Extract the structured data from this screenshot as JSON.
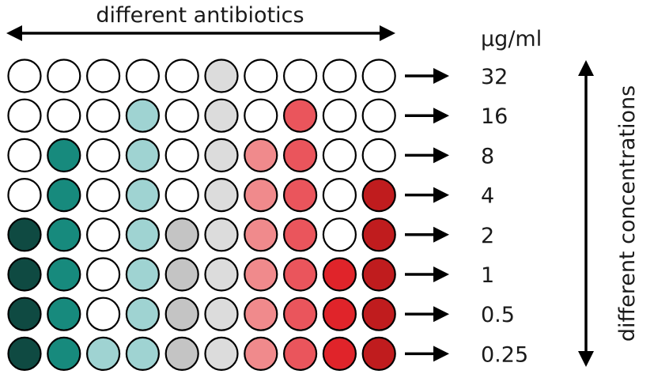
{
  "header": {
    "top_label": "different antibiotics",
    "unit_label": "μg/ml",
    "side_label": "different concentrations"
  },
  "concentrations": [
    "32",
    "16",
    "8",
    "4",
    "2",
    "1",
    "0.5",
    "0.25"
  ],
  "palette": {
    "empty": "#ffffff",
    "dark_teal": "#0f4a42",
    "teal": "#178a7d",
    "light_teal": "#9fd3d2",
    "gray": "#c4c4c4",
    "light_gray": "#dcdcdc",
    "pink": "#f08a8c",
    "salmon": "#ea555c",
    "red": "#e0242a",
    "dark_red": "#c01c1e"
  },
  "wells": [
    [
      "empty",
      "empty",
      "empty",
      "empty",
      "empty",
      "light_gray",
      "empty",
      "empty",
      "empty",
      "empty"
    ],
    [
      "empty",
      "empty",
      "empty",
      "light_teal",
      "empty",
      "light_gray",
      "empty",
      "salmon",
      "empty",
      "empty"
    ],
    [
      "empty",
      "teal",
      "empty",
      "light_teal",
      "empty",
      "light_gray",
      "pink",
      "salmon",
      "empty",
      "empty"
    ],
    [
      "empty",
      "teal",
      "empty",
      "light_teal",
      "empty",
      "light_gray",
      "pink",
      "salmon",
      "empty",
      "dark_red"
    ],
    [
      "dark_teal",
      "teal",
      "empty",
      "light_teal",
      "gray",
      "light_gray",
      "pink",
      "salmon",
      "empty",
      "dark_red"
    ],
    [
      "dark_teal",
      "teal",
      "empty",
      "light_teal",
      "gray",
      "light_gray",
      "pink",
      "salmon",
      "red",
      "dark_red"
    ],
    [
      "dark_teal",
      "teal",
      "empty",
      "light_teal",
      "gray",
      "light_gray",
      "pink",
      "salmon",
      "red",
      "dark_red"
    ],
    [
      "dark_teal",
      "teal",
      "light_teal",
      "light_teal",
      "gray",
      "light_gray",
      "pink",
      "salmon",
      "red",
      "dark_red"
    ]
  ]
}
